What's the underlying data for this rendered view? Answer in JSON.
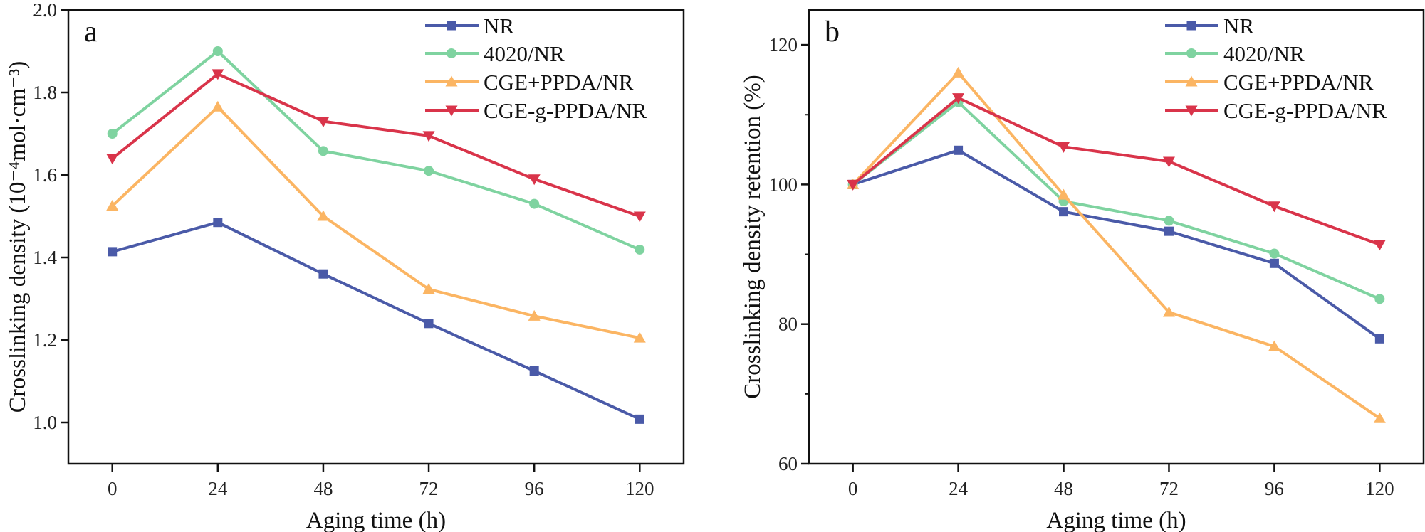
{
  "chart_data": [
    {
      "type": "line",
      "panel_label": "a",
      "xlabel": "Aging time (h)",
      "ylabel": "Crosslinking density (10⁻⁴mol·cm⁻³)",
      "x": [
        0,
        24,
        48,
        72,
        96,
        120
      ],
      "x_ticks": [
        "0",
        "24",
        "48",
        "72",
        "96",
        "120"
      ],
      "y_ticks": [
        "1.0",
        "1.2",
        "1.4",
        "1.6",
        "1.8",
        "2.0"
      ],
      "xlim": [
        -10,
        130
      ],
      "ylim": [
        0.9,
        2.0
      ],
      "grid": false,
      "legend_position": "top-right",
      "series": [
        {
          "name": "NR",
          "color": "#4a5aa8",
          "marker": "square",
          "values": [
            1.414,
            1.485,
            1.36,
            1.24,
            1.125,
            1.008
          ]
        },
        {
          "name": "4020/NR",
          "color": "#7fd3a0",
          "marker": "circle",
          "values": [
            1.7,
            1.9,
            1.658,
            1.61,
            1.53,
            1.419
          ]
        },
        {
          "name": "CGE+PPDA/NR",
          "color": "#fbb563",
          "marker": "triangle-up",
          "values": [
            1.525,
            1.765,
            1.5,
            1.323,
            1.258,
            1.205
          ]
        },
        {
          "name": "CGE-g-PPDA/NR",
          "color": "#d9344a",
          "marker": "triangle-down",
          "values": [
            1.64,
            1.845,
            1.73,
            1.695,
            1.59,
            1.5
          ]
        }
      ]
    },
    {
      "type": "line",
      "panel_label": "b",
      "xlabel": "Aging time (h)",
      "ylabel": "Crosslinking density retention (%)",
      "x": [
        0,
        24,
        48,
        72,
        96,
        120
      ],
      "x_ticks": [
        "0",
        "24",
        "48",
        "72",
        "96",
        "120"
      ],
      "y_ticks": [
        "60",
        "80",
        "100",
        "120"
      ],
      "xlim": [
        -10,
        130
      ],
      "ylim": [
        60,
        125
      ],
      "grid": false,
      "legend_position": "top-right",
      "series": [
        {
          "name": "NR",
          "color": "#4a5aa8",
          "marker": "square",
          "values": [
            100,
            104.9,
            96.1,
            93.3,
            88.7,
            77.9
          ]
        },
        {
          "name": "4020/NR",
          "color": "#7fd3a0",
          "marker": "circle",
          "values": [
            100,
            111.8,
            97.6,
            94.8,
            90.1,
            83.6
          ]
        },
        {
          "name": "CGE+PPDA/NR",
          "color": "#fbb563",
          "marker": "triangle-up",
          "values": [
            100,
            116.0,
            98.5,
            81.7,
            76.8,
            66.5
          ]
        },
        {
          "name": "CGE-g-PPDA/NR",
          "color": "#d9344a",
          "marker": "triangle-down",
          "values": [
            100,
            112.4,
            105.4,
            103.3,
            96.9,
            91.4
          ]
        }
      ]
    }
  ]
}
